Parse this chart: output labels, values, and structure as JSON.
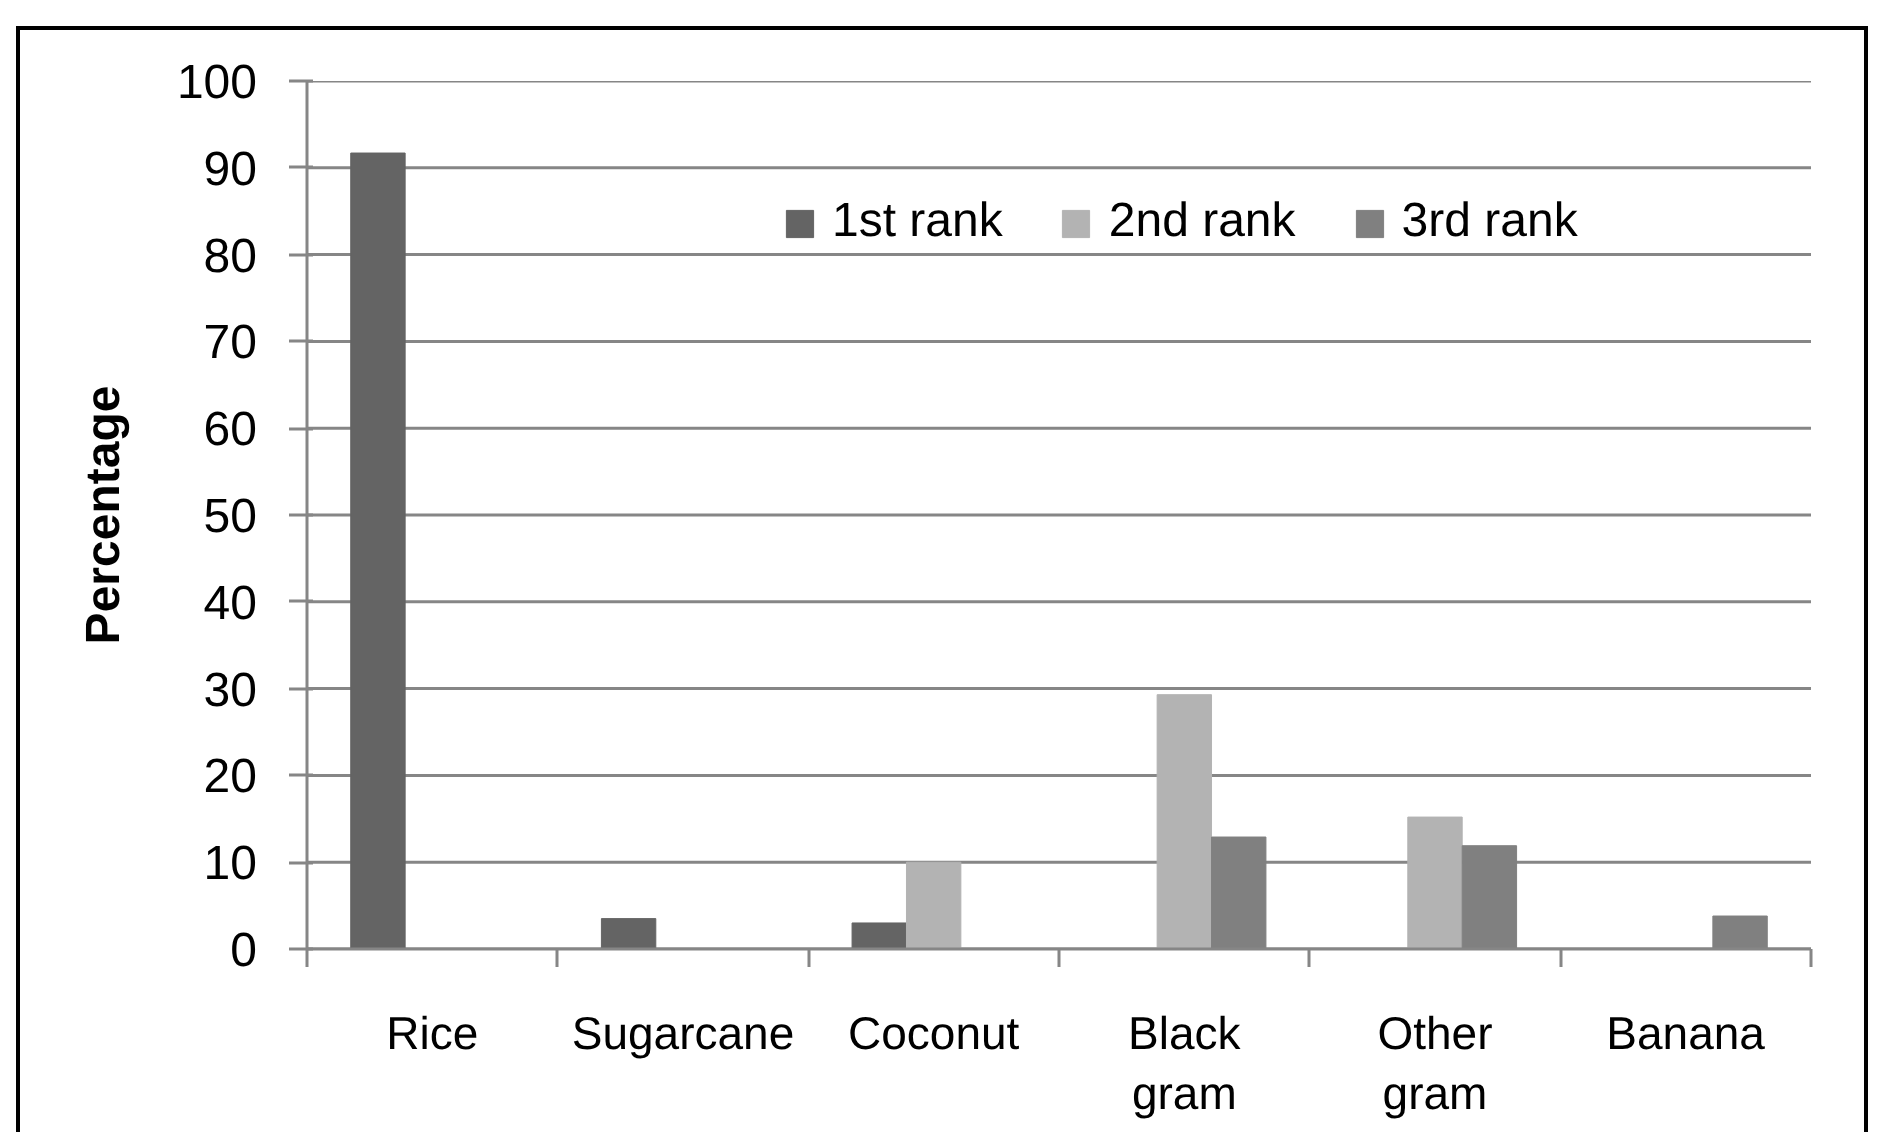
{
  "chart_data": {
    "type": "bar",
    "ylabel": "Percentage",
    "categories": [
      "Rice",
      "Sugarcane",
      "Coconut",
      "Black gram",
      "Other gram",
      "Banana"
    ],
    "series": [
      {
        "name": "1st rank",
        "color": "#646464",
        "values": [
          91.7,
          3.5,
          3.0,
          null,
          null,
          null
        ]
      },
      {
        "name": "2nd rank",
        "color": "#b3b3b3",
        "values": [
          null,
          null,
          10.0,
          29.3,
          15.2,
          null
        ]
      },
      {
        "name": "3rd rank",
        "color": "#808080",
        "values": [
          null,
          null,
          null,
          12.9,
          11.9,
          3.8
        ]
      }
    ],
    "ylim": [
      0,
      100
    ],
    "yticks": [
      0,
      10,
      20,
      30,
      40,
      50,
      60,
      70,
      80,
      90,
      100
    ],
    "grid": "y",
    "legend": "top"
  }
}
